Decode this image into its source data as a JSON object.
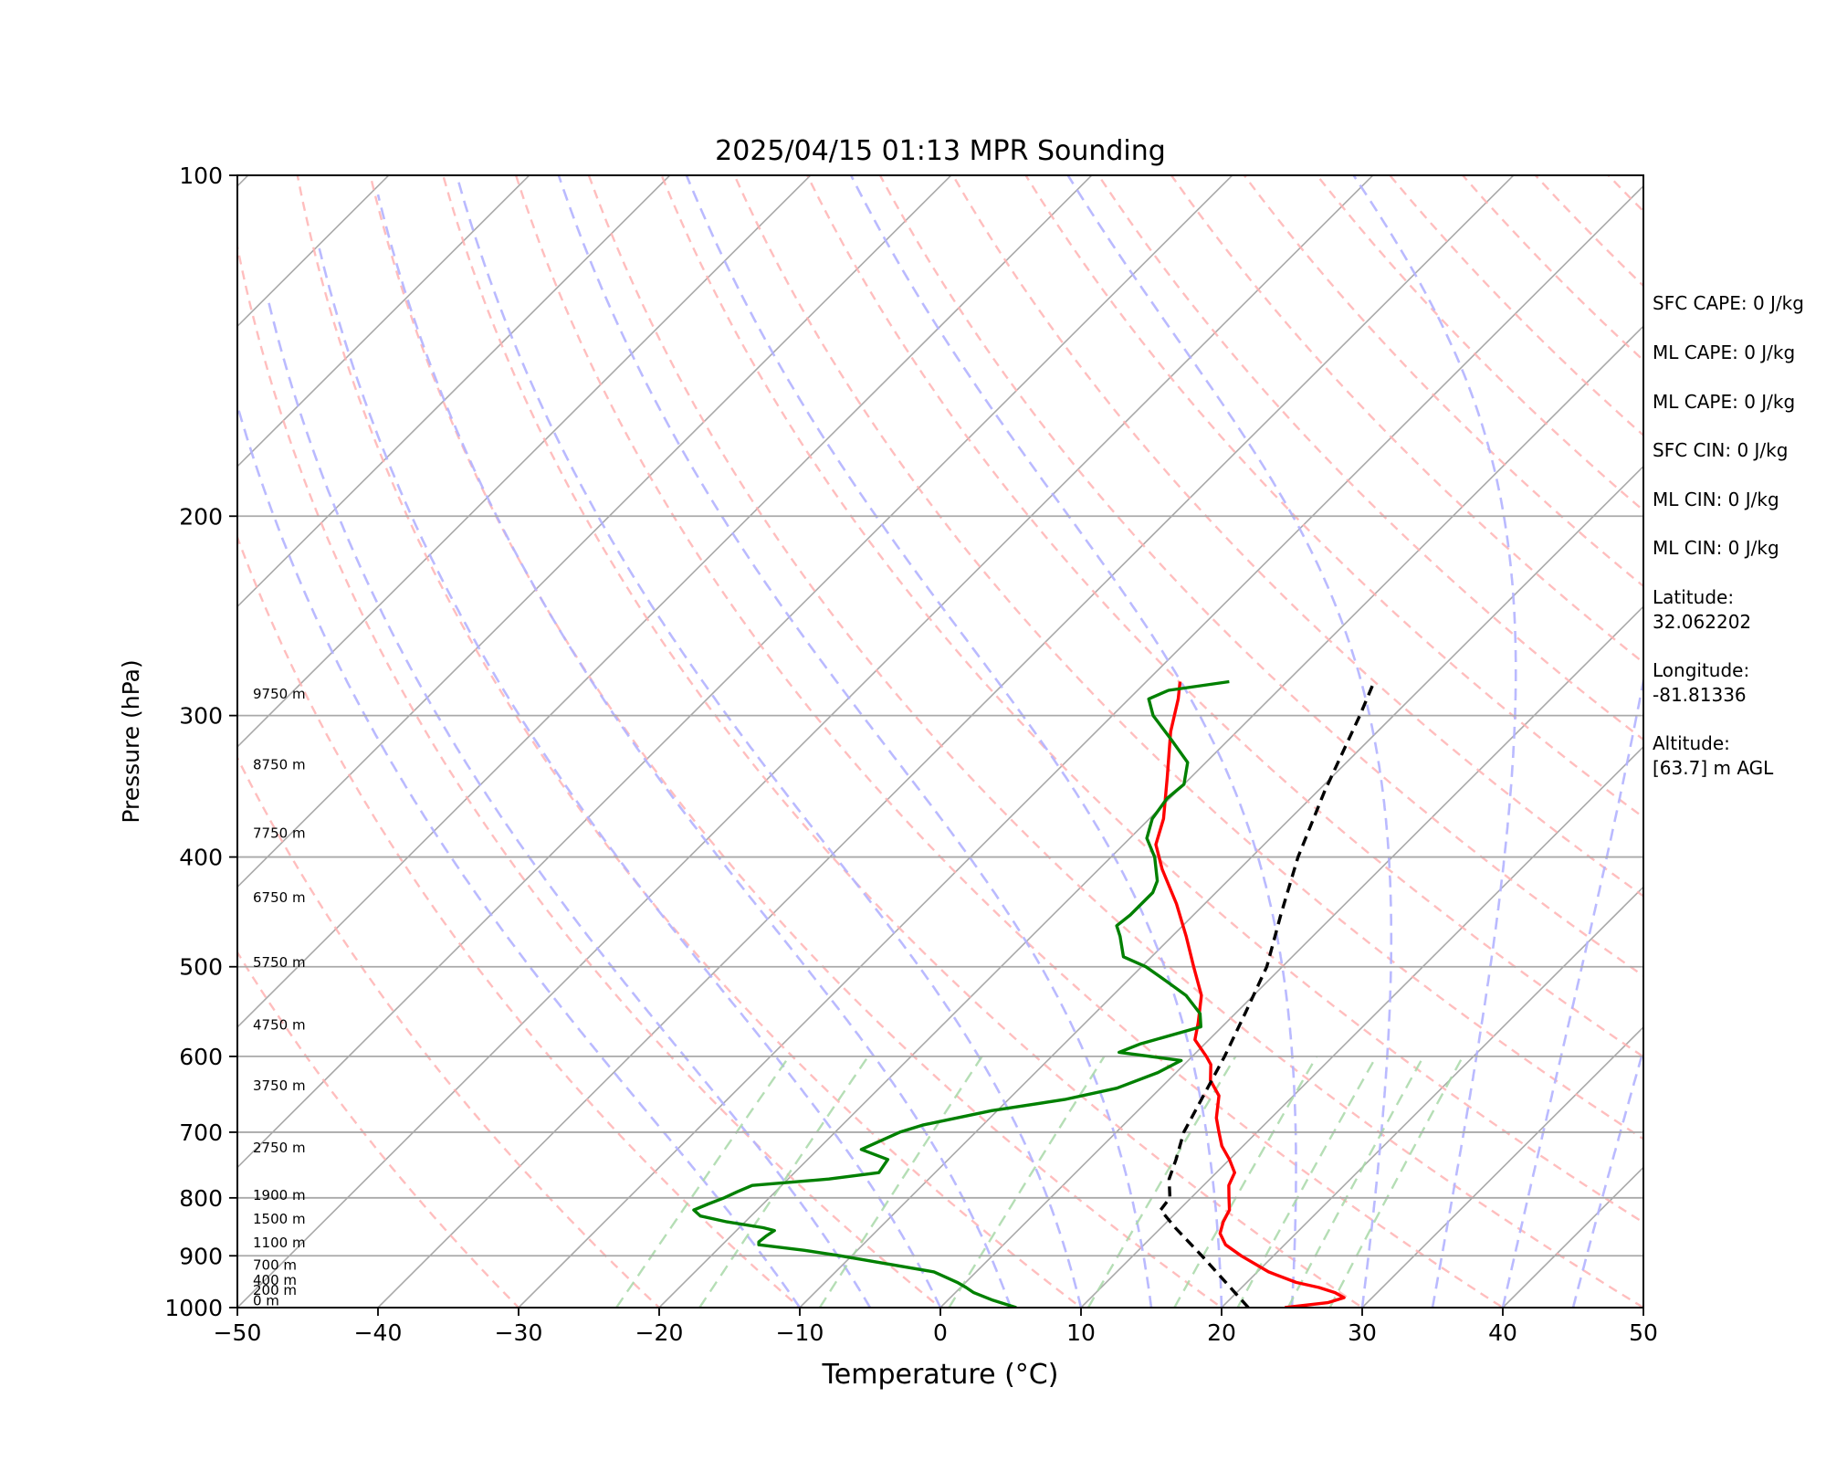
{
  "chart_data": {
    "type": "line",
    "subtype": "skew-t log-p sounding",
    "title": "2025/04/15 01:13 MPR Sounding",
    "xlabel": "Temperature (°C)",
    "ylabel": "Pressure (hPa)",
    "xlim": [
      -50,
      50
    ],
    "ylim": [
      1000,
      100
    ],
    "y_scale": "log",
    "x_ticks": [
      "−50",
      "−40",
      "−30",
      "−20",
      "−10",
      "0",
      "10",
      "20",
      "30",
      "40",
      "50"
    ],
    "y_ticks": [
      "100",
      "200",
      "300",
      "400",
      "500",
      "600",
      "700",
      "800",
      "900",
      "1000"
    ],
    "isobars": [
      200,
      300,
      400,
      500,
      600,
      700,
      800,
      900
    ],
    "skewed_isotherms_color": "#a9a9a9",
    "dry_adiabat_color": "#ffb3b3",
    "moist_adiabat_color": "#b3b3ff",
    "mixing_ratio_color": "#a8d8a8",
    "height_labels": [
      {
        "label": "0 m",
        "p": 999
      },
      {
        "label": "200 m",
        "p": 978
      },
      {
        "label": "400 m",
        "p": 958
      },
      {
        "label": "700 m",
        "p": 929
      },
      {
        "label": "1100 m",
        "p": 888
      },
      {
        "label": "1500 m",
        "p": 846
      },
      {
        "label": "1900 m",
        "p": 806
      },
      {
        "label": "2750 m",
        "p": 732
      },
      {
        "label": "3750 m",
        "p": 645
      },
      {
        "label": "4750 m",
        "p": 570
      },
      {
        "label": "5750 m",
        "p": 502
      },
      {
        "label": "6750 m",
        "p": 440
      },
      {
        "label": "7750 m",
        "p": 386
      },
      {
        "label": "8750 m",
        "p": 336
      },
      {
        "label": "9750 m",
        "p": 291
      }
    ],
    "series": [
      {
        "role": "temperature",
        "color": "#ff0000",
        "points": [
          [
            1000,
            24.5
          ],
          [
            990,
            27.2
          ],
          [
            980,
            28.0
          ],
          [
            970,
            27.0
          ],
          [
            960,
            25.5
          ],
          [
            950,
            23.5
          ],
          [
            930,
            20.8
          ],
          [
            900,
            17.7
          ],
          [
            880,
            15.8
          ],
          [
            860,
            14.6
          ],
          [
            840,
            14.0
          ],
          [
            820,
            13.6
          ],
          [
            800,
            12.7
          ],
          [
            780,
            11.8
          ],
          [
            760,
            11.3
          ],
          [
            740,
            10.0
          ],
          [
            720,
            8.5
          ],
          [
            700,
            7.3
          ],
          [
            680,
            6.1
          ],
          [
            650,
            4.7
          ],
          [
            630,
            3.0
          ],
          [
            610,
            1.9
          ],
          [
            600,
            1.0
          ],
          [
            580,
            -1.0
          ],
          [
            560,
            -2.0
          ],
          [
            530,
            -3.7
          ],
          [
            500,
            -6.3
          ],
          [
            470,
            -9.0
          ],
          [
            440,
            -12.0
          ],
          [
            410,
            -15.5
          ],
          [
            390,
            -17.7
          ],
          [
            370,
            -19.0
          ],
          [
            340,
            -21.7
          ],
          [
            310,
            -24.7
          ],
          [
            290,
            -26.5
          ],
          [
            280,
            -27.6
          ]
        ]
      },
      {
        "role": "dewpoint",
        "color": "#008000",
        "points": [
          [
            1000,
            5.4
          ],
          [
            985,
            3.2
          ],
          [
            970,
            1.3
          ],
          [
            960,
            0.4
          ],
          [
            950,
            -0.6
          ],
          [
            930,
            -3.0
          ],
          [
            910,
            -8.2
          ],
          [
            900,
            -10.8
          ],
          [
            890,
            -13.8
          ],
          [
            880,
            -17.4
          ],
          [
            875,
            -17.6
          ],
          [
            865,
            -17.5
          ],
          [
            855,
            -17.3
          ],
          [
            850,
            -18.3
          ],
          [
            840,
            -21.3
          ],
          [
            830,
            -23.6
          ],
          [
            820,
            -24.5
          ],
          [
            810,
            -23.9
          ],
          [
            800,
            -23.2
          ],
          [
            790,
            -22.7
          ],
          [
            780,
            -22.1
          ],
          [
            770,
            -17.1
          ],
          [
            760,
            -14.0
          ],
          [
            740,
            -14.3
          ],
          [
            725,
            -16.9
          ],
          [
            700,
            -15.4
          ],
          [
            690,
            -14.3
          ],
          [
            670,
            -10.4
          ],
          [
            655,
            -6.0
          ],
          [
            640,
            -3.1
          ],
          [
            620,
            -1.3
          ],
          [
            605,
            -0.5
          ],
          [
            595,
            -5.5
          ],
          [
            585,
            -4.6
          ],
          [
            565,
            -1.5
          ],
          [
            550,
            -2.5
          ],
          [
            530,
            -4.8
          ],
          [
            515,
            -7.2
          ],
          [
            500,
            -9.7
          ],
          [
            490,
            -12.0
          ],
          [
            470,
            -13.7
          ],
          [
            460,
            -14.7
          ],
          [
            450,
            -14.5
          ],
          [
            430,
            -14.5
          ],
          [
            420,
            -15.0
          ],
          [
            400,
            -16.9
          ],
          [
            385,
            -18.8
          ],
          [
            370,
            -19.8
          ],
          [
            355,
            -20.2
          ],
          [
            345,
            -20.0
          ],
          [
            330,
            -21.3
          ],
          [
            315,
            -24.1
          ],
          [
            300,
            -27.1
          ],
          [
            290,
            -28.6
          ],
          [
            285,
            -27.8
          ],
          [
            280,
            -24.1
          ]
        ]
      },
      {
        "role": "parcel",
        "color": "#000000",
        "dashed": true,
        "points": [
          [
            1000,
            21.9
          ],
          [
            950,
            18.5
          ],
          [
            900,
            14.9
          ],
          [
            850,
            11.0
          ],
          [
            820,
            8.7
          ],
          [
            800,
            8.5
          ],
          [
            770,
            7.1
          ],
          [
            740,
            6.2
          ],
          [
            700,
            4.8
          ],
          [
            650,
            3.6
          ],
          [
            600,
            2.3
          ],
          [
            550,
            0.7
          ],
          [
            500,
            -1.1
          ],
          [
            450,
            -3.8
          ],
          [
            400,
            -6.7
          ],
          [
            350,
            -9.5
          ],
          [
            300,
            -12.4
          ],
          [
            280,
            -13.8
          ]
        ]
      }
    ]
  },
  "side_panel": {
    "sfc_cape": "SFC CAPE: 0 J/kg",
    "ml_cape_1": "ML CAPE: 0 J/kg",
    "ml_cape_2": "ML CAPE: 0 J/kg",
    "sfc_cin": "SFC CIN: 0 J/kg",
    "ml_cin_1": "ML CIN: 0 J/kg",
    "ml_cin_2": "ML CIN: 0 J/kg",
    "latitude": "Latitude:\n32.062202",
    "longitude": "Longitude:\n-81.81336",
    "altitude": "Altitude:\n[63.7] m AGL"
  }
}
